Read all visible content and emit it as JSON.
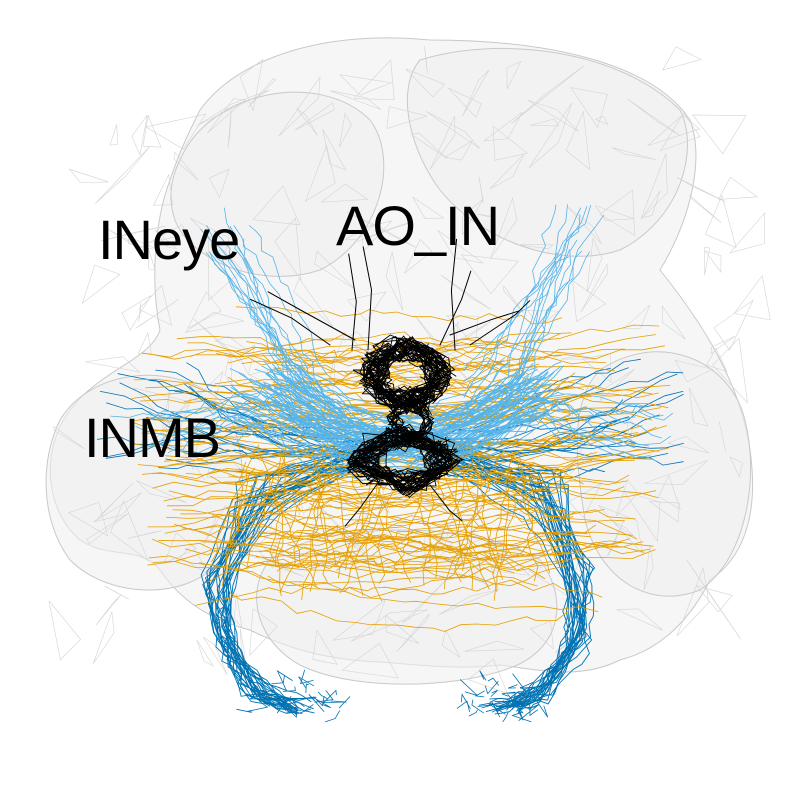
{
  "labels": {
    "ineye": "INeye",
    "ao_in": "AO_IN",
    "inmb": "INMB"
  },
  "colors": {
    "brain_fill": "#efefef",
    "brain_edge": "#c9c9c9",
    "ineye_neurons": "#56b4e9",
    "ao_in_neurons": "#000000",
    "inmb_orange": "#e69f00",
    "inmb_blue": "#0072b2"
  }
}
